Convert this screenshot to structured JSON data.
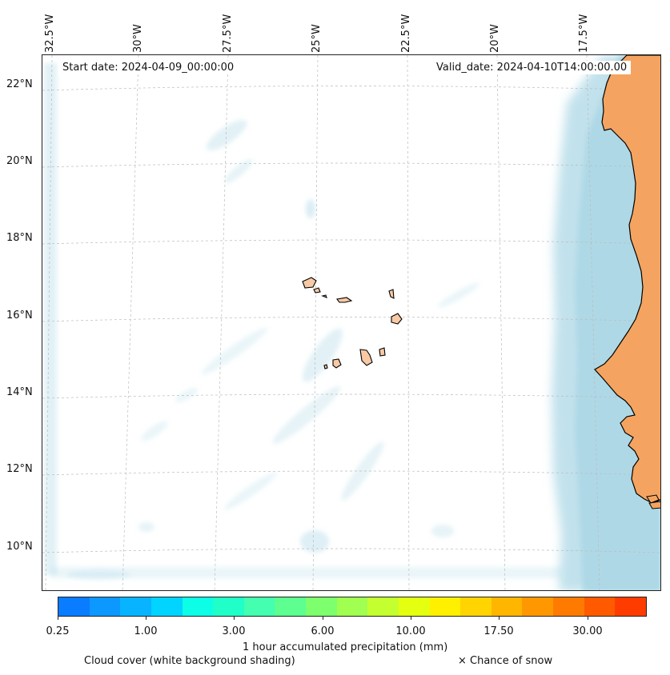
{
  "map": {
    "start_date": "Start date: 2024-04-09_00:00:00",
    "valid_date": "Valid_date: 2024-04-10T14:00:00.00",
    "longitude_labels": [
      "32.5°W",
      "30°W",
      "27.5°W",
      "25°W",
      "22.5°W",
      "20°W",
      "17.5°W"
    ],
    "latitude_labels": [
      "22°N",
      "20°N",
      "18°N",
      "16°N",
      "14°N",
      "12°N",
      "10°N"
    ],
    "ocean_color": "#ffffff",
    "land_color": "#f4a460",
    "island_color": "#f7c9a4",
    "cloud_color": "#add8e6"
  },
  "colorbar": {
    "colors": [
      "#0a7cff",
      "#0c98ff",
      "#08b4ff",
      "#00d4ff",
      "#0cffe6",
      "#20ffc8",
      "#44ffb0",
      "#5cff90",
      "#7eff6e",
      "#a0ff50",
      "#c4ff30",
      "#e4ff10",
      "#fff000",
      "#ffd400",
      "#ffb600",
      "#ff9800",
      "#ff7a00",
      "#ff5a00",
      "#ff3c00"
    ],
    "ticks": [
      "0.25",
      "1.00",
      "3.00",
      "6.00",
      "10.00",
      "17.50",
      "30.00"
    ],
    "label": "1 hour accumulated precipitation (mm)"
  },
  "legend": {
    "cloud_cover": "Cloud cover (white background shading)",
    "snow": "× Chance of snow"
  }
}
